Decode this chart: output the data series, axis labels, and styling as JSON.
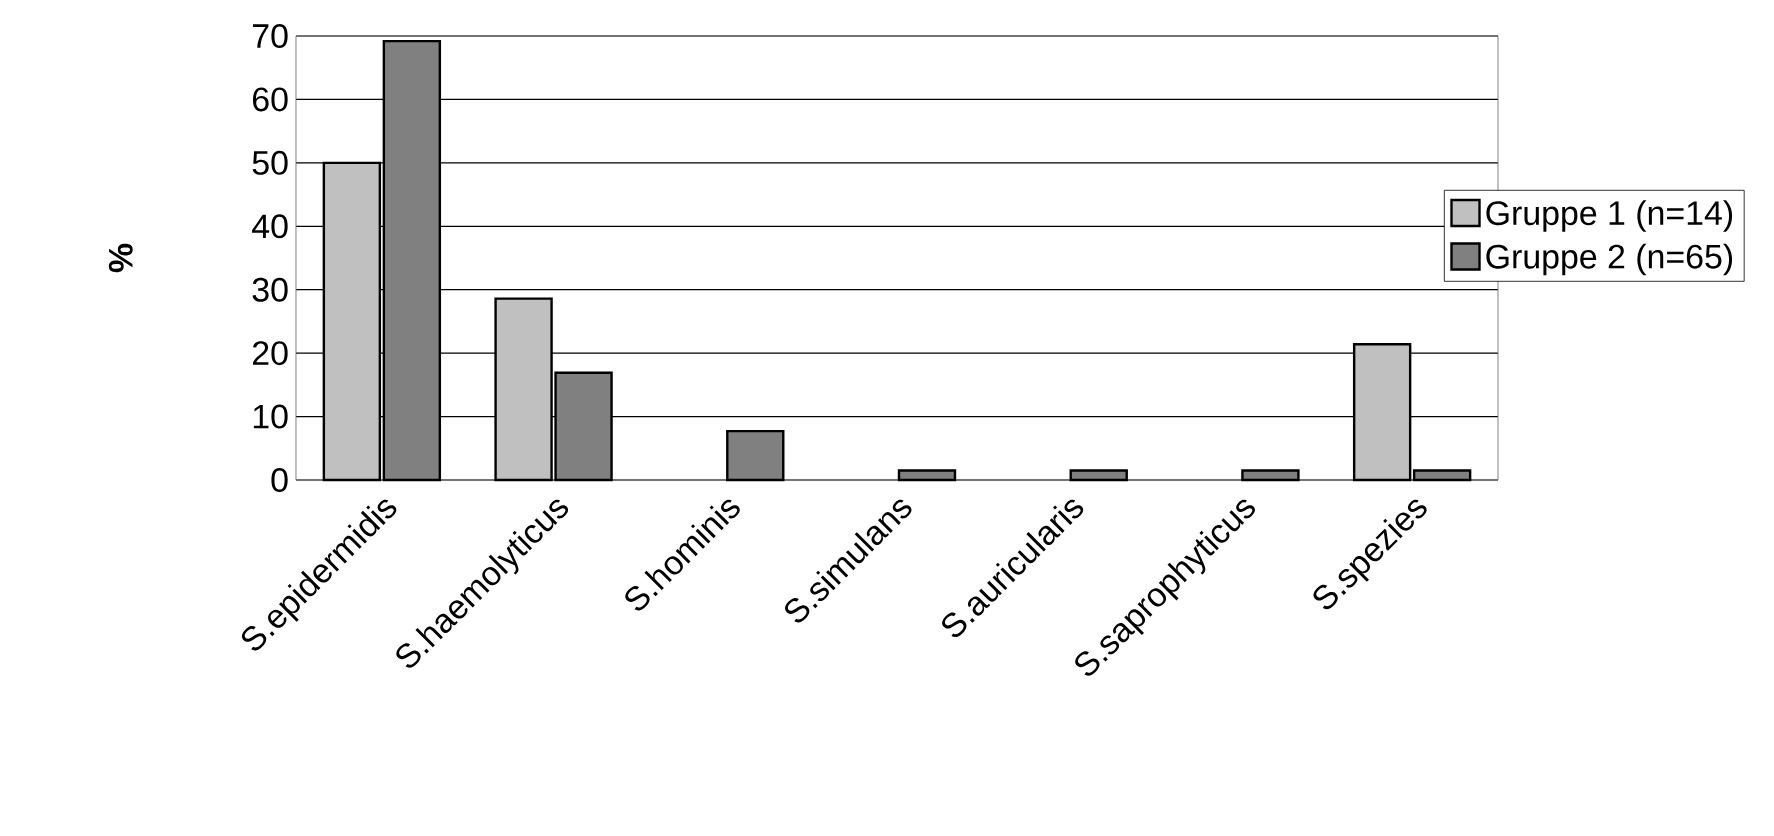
{
  "chart_data": {
    "type": "bar",
    "ylabel": "%",
    "categories": [
      "S.epidermidis",
      "S.haemolyticus",
      "S.hominis",
      "S.simulans",
      "S.auricularis",
      "S.saprophyticus",
      "S.spezies"
    ],
    "series": [
      {
        "name": "Gruppe 1 (n=14)",
        "color": "#c0c0c0",
        "values": [
          50,
          28.6,
          0,
          0,
          0,
          0,
          21.4
        ]
      },
      {
        "name": "Gruppe 2 (n=65)",
        "color": "#808080",
        "values": [
          69.2,
          16.9,
          7.7,
          1.5,
          1.5,
          1.5,
          1.5
        ]
      }
    ],
    "ylim": [
      0,
      70
    ],
    "yticks": [
      0,
      10,
      20,
      30,
      40,
      50,
      60,
      70
    ],
    "grid": "y",
    "legend": "right"
  }
}
